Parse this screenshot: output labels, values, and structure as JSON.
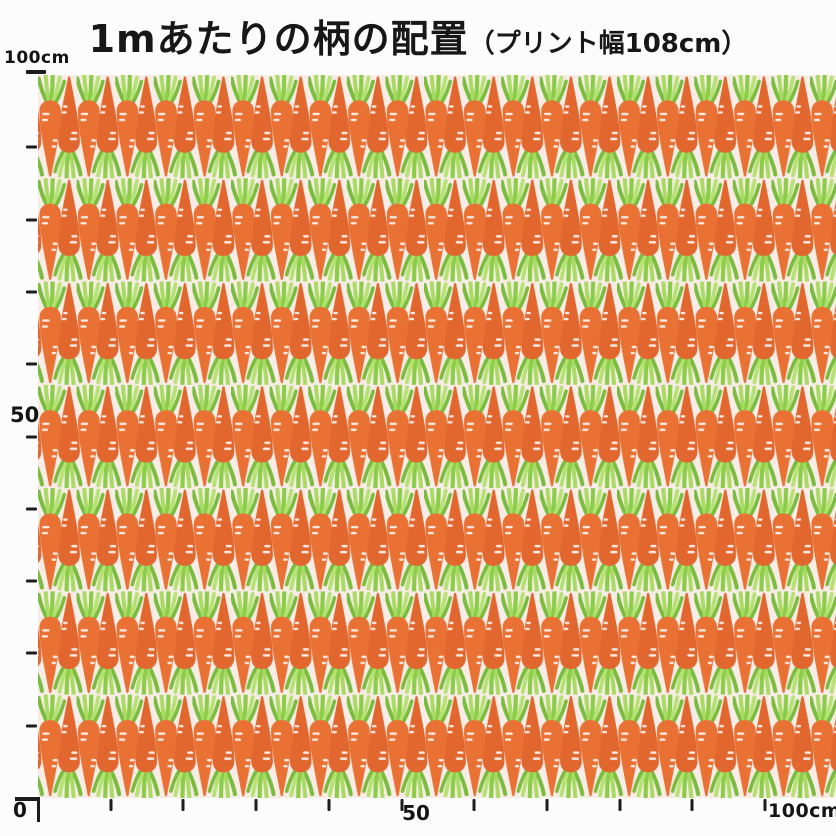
{
  "title": {
    "main": "1mあたりの柄の配置",
    "sub": "（プリント幅108cm）"
  },
  "fabric": {
    "pattern_name": "carrots",
    "print_width_cm": 108,
    "shown_length_cm": 100,
    "pattern_rows": 7,
    "background_color": "#f7ece6",
    "carrot_front_color": "#ea7134",
    "carrot_back_color": "#e2672f",
    "carrot_detail_color": "#ffffff",
    "leaf_colors": [
      "#7abd3e",
      "#a9db64",
      "#8bcd49",
      "#b5e273"
    ]
  },
  "rulers": {
    "origin_label": "0",
    "tick_color": "#1c1c1c",
    "left": {
      "top_label": "100cm",
      "mid_label": "50",
      "tick_step_cm": 10,
      "ticks_cm": [
        10,
        20,
        30,
        40,
        50,
        60,
        70,
        80,
        90
      ]
    },
    "bottom": {
      "mid_label": "50",
      "end_label": "100cm",
      "tick_step_cm": 10,
      "ticks_cm": [
        10,
        20,
        30,
        40,
        50,
        60,
        70,
        80,
        90,
        100
      ]
    }
  }
}
